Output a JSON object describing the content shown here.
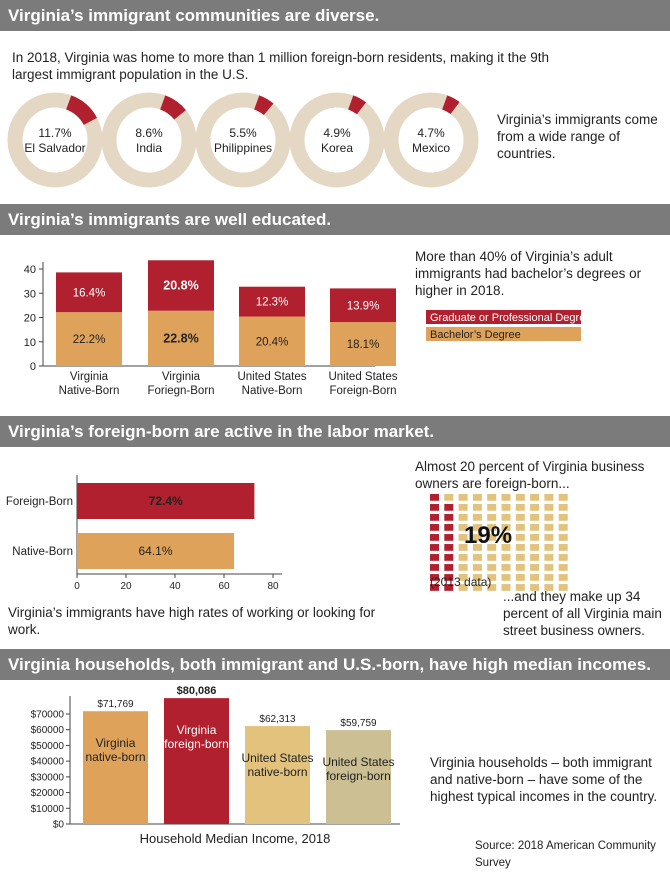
{
  "sections": {
    "diverse": {
      "title": "Virginia’s immigrant communities are diverse.",
      "intro": "In 2018, Virginia was home to more than 1 million foreign-born residents, making it the 9th largest immigrant population in the U.S.",
      "note": "Virginia’s immigrants come from a wide range of countries."
    },
    "education": {
      "title": "Virginia’s immigrants are well educated.",
      "note": "More than 40% of Virginia’s adult immigrants had bachelor’s degrees or higher in 2018."
    },
    "labor": {
      "title": "Virginia’s foreign-born are active in the labor market.",
      "owners_top": "Almost 20 percent of Virginia business owners are foreign-born...",
      "owners_pct": "19%",
      "owners_year": "(2013 data)",
      "owners_bottom": "...and they make up 34 percent of all Virginia main street business owners.",
      "note": "Virginia’s immigrants have high rates of working or looking for work."
    },
    "income": {
      "title": "Virginia households, both immigrant and U.S.-born, have high median incomes.",
      "note": "Virginia households – both immigrant and native-born – have some of the highest typical incomes in the country.",
      "source": "Source: 2018 American Community Survey"
    }
  },
  "colors": {
    "red": "#b0202e",
    "orange": "#dfa25a",
    "tan": "#e4d7c3",
    "gold": "#e2c27d",
    "khaki": "#cbbf93",
    "band": "#7b7b7b"
  },
  "chart_data": [
    {
      "type": "pie",
      "style": "donut",
      "categories": [
        "El Salvador",
        "India",
        "Philippines",
        "Korea",
        "Mexico"
      ],
      "values": [
        11.7,
        8.6,
        5.5,
        4.9,
        4.7
      ],
      "labels": [
        "11.7%",
        "8.6%",
        "5.5%",
        "4.9%",
        "4.7%"
      ]
    },
    {
      "type": "bar",
      "stacked": true,
      "categories": [
        [
          "Virginia",
          "Native-Born"
        ],
        [
          "Virginia",
          "Foriegn-Born"
        ],
        [
          "United States",
          "Native-Born"
        ],
        [
          "United States",
          "Foreign-Born"
        ]
      ],
      "series": [
        {
          "name": "Bachelor’s Degree",
          "values": [
            22.2,
            22.8,
            20.4,
            18.1
          ],
          "labels": [
            "22.2%",
            "22.8%",
            "20.4%",
            "18.1%"
          ]
        },
        {
          "name": "Graduate or Professional Degree",
          "values": [
            16.4,
            20.8,
            12.3,
            13.9
          ],
          "labels": [
            "16.4%",
            "20.8%",
            "12.3%",
            "13.9%"
          ]
        }
      ],
      "ylim": [
        0,
        44
      ],
      "yticks": [
        "0",
        "10",
        "20",
        "30",
        "40"
      ],
      "legend": "right"
    },
    {
      "type": "bar",
      "orientation": "horizontal",
      "categories": [
        "Foreign-Born",
        "Native-Born"
      ],
      "values": [
        72.4,
        64.1
      ],
      "labels": [
        "72.4%",
        "64.1%"
      ],
      "xlim": [
        0,
        80
      ],
      "xticks": [
        "0",
        "20",
        "40",
        "60",
        "80"
      ]
    },
    {
      "type": "bar",
      "categories": [
        [
          "Virginia",
          "native-born"
        ],
        [
          "Virginia",
          "foreign-born"
        ],
        [
          "United States",
          "native-born"
        ],
        [
          "United States",
          "foreign-born"
        ]
      ],
      "values": [
        71769,
        80086,
        62313,
        59759
      ],
      "labels": [
        "$71,769",
        "$80,086",
        "$62,313",
        "$59,759"
      ],
      "ylim": [
        0,
        80000
      ],
      "yticks": [
        "$0",
        "$10000",
        "$20000",
        "$30000",
        "$40000",
        "$50000",
        "$60000",
        "$70000"
      ],
      "xlabel": "Household Median Income, 2018"
    }
  ]
}
